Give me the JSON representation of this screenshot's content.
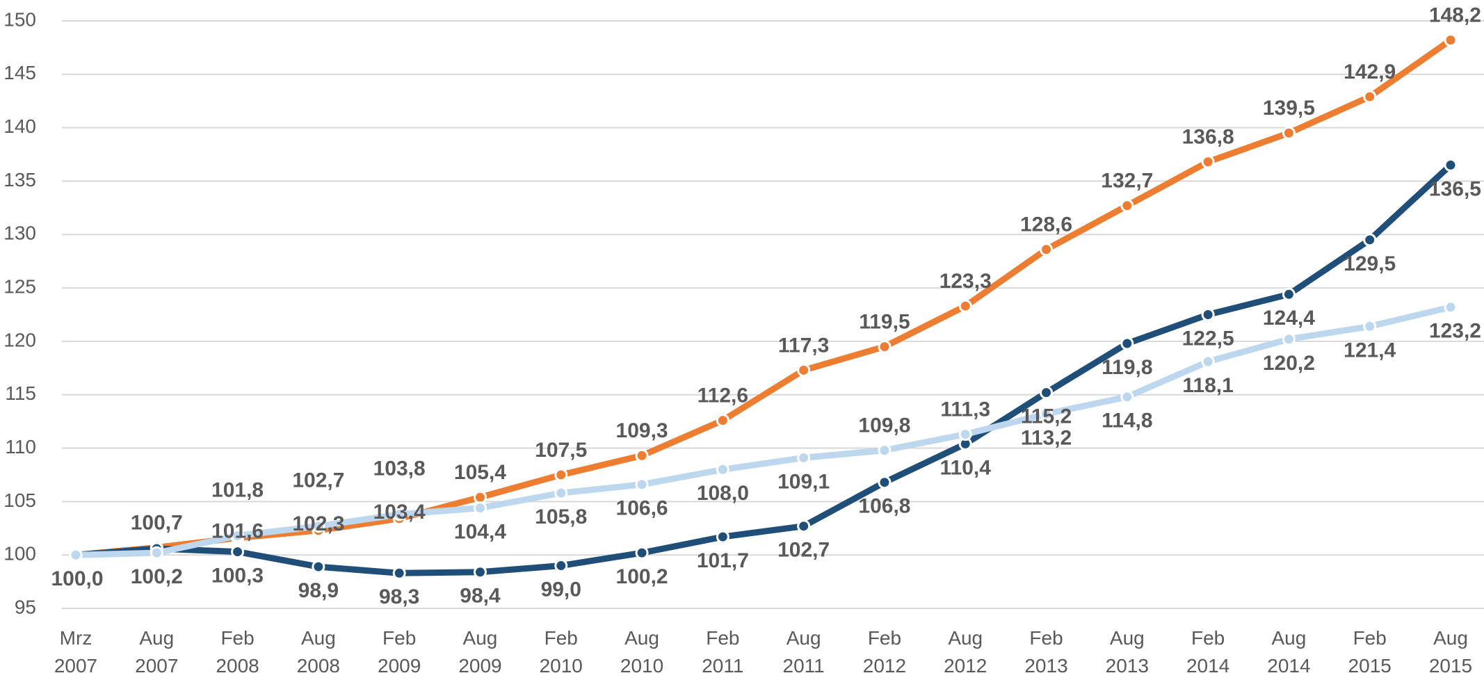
{
  "chart_data": {
    "type": "line",
    "categories": [
      "Mrz 2007",
      "Aug 2007",
      "Feb 2008",
      "Aug 2008",
      "Feb 2009",
      "Aug 2009",
      "Feb 2010",
      "Aug 2010",
      "Feb 2011",
      "Aug 2011",
      "Feb 2012",
      "Aug 2012",
      "Feb 2013",
      "Aug 2013",
      "Feb 2014",
      "Aug 2014",
      "Feb 2015",
      "Aug 2015"
    ],
    "series": [
      {
        "color": "#ed7d31",
        "values": [
          100.0,
          100.7,
          101.6,
          102.3,
          103.4,
          105.4,
          107.5,
          109.3,
          112.6,
          117.3,
          119.5,
          123.3,
          128.6,
          132.7,
          136.8,
          139.5,
          142.9,
          148.2
        ],
        "value_labels": [
          null,
          "100,7",
          "101,6",
          "102,3",
          "103,4",
          "105,4",
          "107,5",
          "109,3",
          "112,6",
          "117,3",
          "119,5",
          "123,3",
          "128,6",
          "132,7",
          "136,8",
          "139,5",
          "142,9",
          "148,2"
        ]
      },
      {
        "color": "#1f4e79",
        "values": [
          100.0,
          100.6,
          100.3,
          98.9,
          98.3,
          98.4,
          99.0,
          100.2,
          101.7,
          102.7,
          106.8,
          110.4,
          115.2,
          119.8,
          122.5,
          124.4,
          129.5,
          136.5
        ],
        "value_labels": [
          "100,0",
          null,
          "100,3",
          "98,9",
          "98,3",
          "98,4",
          "99,0",
          "100,2",
          "101,7",
          "102,7",
          "106,8",
          "110,4",
          "115,2",
          "119,8",
          "122,5",
          "124,4",
          "129,5",
          "136,5"
        ]
      },
      {
        "color": "#bdd7ee",
        "values": [
          100.0,
          100.2,
          101.8,
          102.7,
          103.8,
          104.4,
          105.8,
          106.6,
          108.0,
          109.1,
          109.8,
          111.3,
          113.2,
          114.8,
          118.1,
          120.2,
          121.4,
          123.2
        ],
        "value_labels": [
          null,
          "100,2",
          "101,8",
          "102,7",
          "103,8",
          "104,4",
          "105,8",
          "106,6",
          "108,0",
          "109,1",
          "109,8",
          "111,3",
          "113,2",
          "114,8",
          "118,1",
          "120,2",
          "121,4",
          "123,2"
        ]
      }
    ],
    "ylim": [
      95,
      150
    ],
    "yticks": [
      95,
      100,
      105,
      110,
      115,
      120,
      125,
      130,
      135,
      140,
      145,
      150
    ],
    "grid": true
  }
}
